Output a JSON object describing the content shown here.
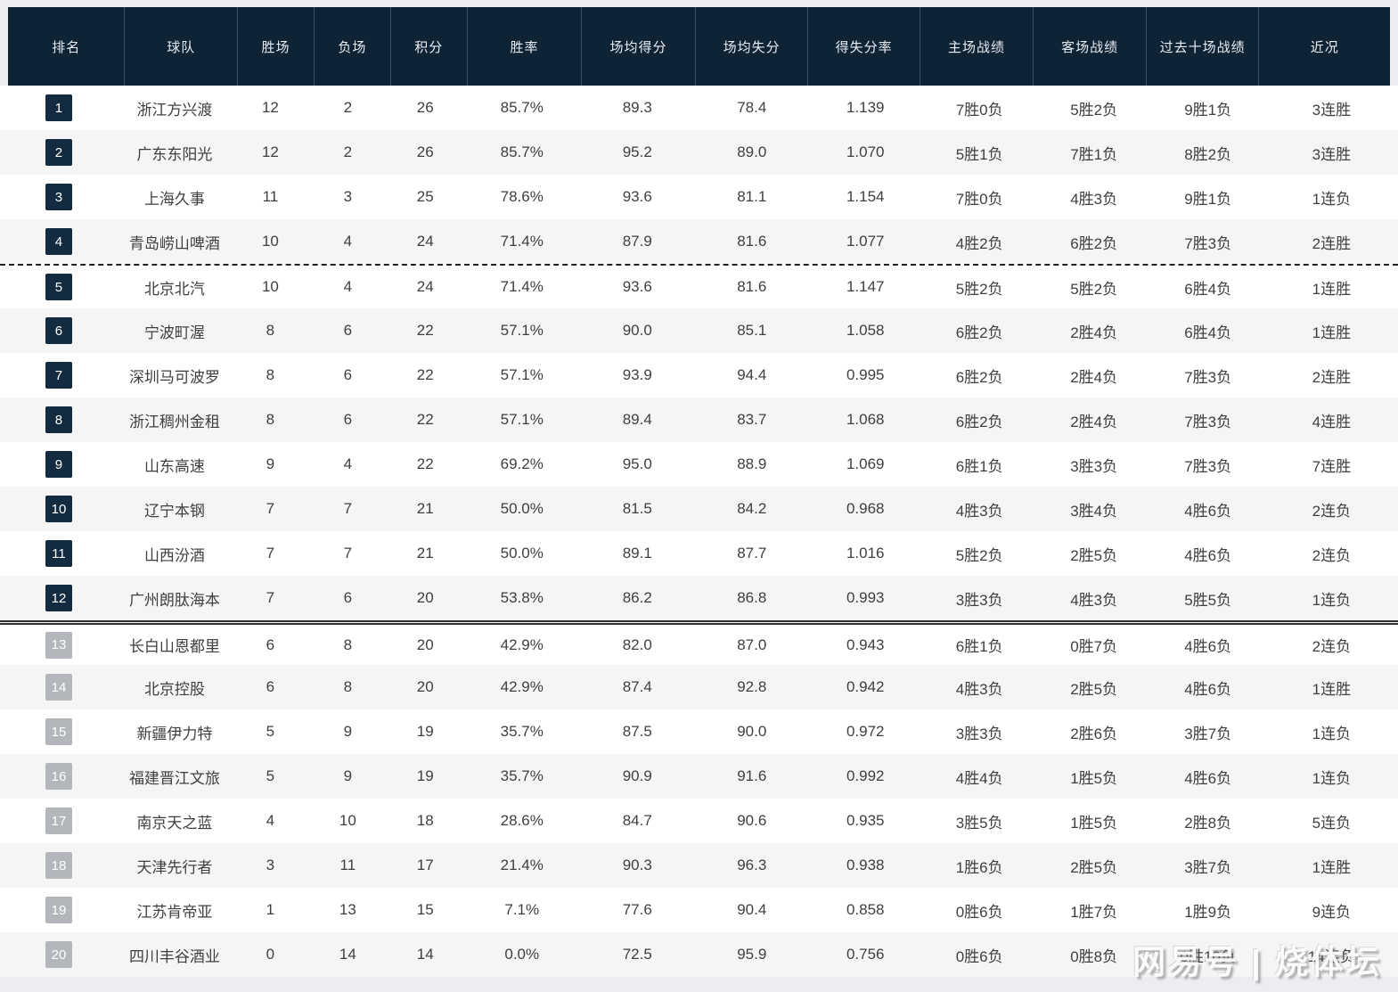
{
  "chart_data": {
    "type": "table",
    "columns": [
      "排名",
      "球队",
      "胜场",
      "负场",
      "积分",
      "胜率",
      "场均得分",
      "场均失分",
      "得失分率",
      "主场战绩",
      "客场战绩",
      "过去十场战绩",
      "近况"
    ],
    "rows": [
      {
        "rank": "1",
        "team": "浙江方兴渡",
        "wins": "12",
        "losses": "2",
        "points": "26",
        "win_rate": "85.7%",
        "avg_for": "89.3",
        "avg_against": "78.4",
        "ratio": "1.139",
        "home": "7胜0负",
        "away": "5胜2负",
        "last10": "9胜1负",
        "streak": "3连胜",
        "rank_badge": "dark",
        "divider_after": "none"
      },
      {
        "rank": "2",
        "team": "广东东阳光",
        "wins": "12",
        "losses": "2",
        "points": "26",
        "win_rate": "85.7%",
        "avg_for": "95.2",
        "avg_against": "89.0",
        "ratio": "1.070",
        "home": "5胜1负",
        "away": "7胜1负",
        "last10": "8胜2负",
        "streak": "3连胜",
        "rank_badge": "dark",
        "divider_after": "none"
      },
      {
        "rank": "3",
        "team": "上海久事",
        "wins": "11",
        "losses": "3",
        "points": "25",
        "win_rate": "78.6%",
        "avg_for": "93.6",
        "avg_against": "81.1",
        "ratio": "1.154",
        "home": "7胜0负",
        "away": "4胜3负",
        "last10": "9胜1负",
        "streak": "1连负",
        "rank_badge": "dark",
        "divider_after": "none"
      },
      {
        "rank": "4",
        "team": "青岛崂山啤酒",
        "wins": "10",
        "losses": "4",
        "points": "24",
        "win_rate": "71.4%",
        "avg_for": "87.9",
        "avg_against": "81.6",
        "ratio": "1.077",
        "home": "4胜2负",
        "away": "6胜2负",
        "last10": "7胜3负",
        "streak": "2连胜",
        "rank_badge": "dark",
        "divider_after": "dashed"
      },
      {
        "rank": "5",
        "team": "北京北汽",
        "wins": "10",
        "losses": "4",
        "points": "24",
        "win_rate": "71.4%",
        "avg_for": "93.6",
        "avg_against": "81.6",
        "ratio": "1.147",
        "home": "5胜2负",
        "away": "5胜2负",
        "last10": "6胜4负",
        "streak": "1连胜",
        "rank_badge": "dark",
        "divider_after": "none"
      },
      {
        "rank": "6",
        "team": "宁波町渥",
        "wins": "8",
        "losses": "6",
        "points": "22",
        "win_rate": "57.1%",
        "avg_for": "90.0",
        "avg_against": "85.1",
        "ratio": "1.058",
        "home": "6胜2负",
        "away": "2胜4负",
        "last10": "6胜4负",
        "streak": "1连胜",
        "rank_badge": "dark",
        "divider_after": "none"
      },
      {
        "rank": "7",
        "team": "深圳马可波罗",
        "wins": "8",
        "losses": "6",
        "points": "22",
        "win_rate": "57.1%",
        "avg_for": "93.9",
        "avg_against": "94.4",
        "ratio": "0.995",
        "home": "6胜2负",
        "away": "2胜4负",
        "last10": "7胜3负",
        "streak": "2连胜",
        "rank_badge": "dark",
        "divider_after": "none"
      },
      {
        "rank": "8",
        "team": "浙江稠州金租",
        "wins": "8",
        "losses": "6",
        "points": "22",
        "win_rate": "57.1%",
        "avg_for": "89.4",
        "avg_against": "83.7",
        "ratio": "1.068",
        "home": "6胜2负",
        "away": "2胜4负",
        "last10": "7胜3负",
        "streak": "4连胜",
        "rank_badge": "dark",
        "divider_after": "none"
      },
      {
        "rank": "9",
        "team": "山东高速",
        "wins": "9",
        "losses": "4",
        "points": "22",
        "win_rate": "69.2%",
        "avg_for": "95.0",
        "avg_against": "88.9",
        "ratio": "1.069",
        "home": "6胜1负",
        "away": "3胜3负",
        "last10": "7胜3负",
        "streak": "7连胜",
        "rank_badge": "dark",
        "divider_after": "none"
      },
      {
        "rank": "10",
        "team": "辽宁本钢",
        "wins": "7",
        "losses": "7",
        "points": "21",
        "win_rate": "50.0%",
        "avg_for": "81.5",
        "avg_against": "84.2",
        "ratio": "0.968",
        "home": "4胜3负",
        "away": "3胜4负",
        "last10": "4胜6负",
        "streak": "2连负",
        "rank_badge": "dark",
        "divider_after": "none"
      },
      {
        "rank": "11",
        "team": "山西汾酒",
        "wins": "7",
        "losses": "7",
        "points": "21",
        "win_rate": "50.0%",
        "avg_for": "89.1",
        "avg_against": "87.7",
        "ratio": "1.016",
        "home": "5胜2负",
        "away": "2胜5负",
        "last10": "4胜6负",
        "streak": "2连负",
        "rank_badge": "dark",
        "divider_after": "none"
      },
      {
        "rank": "12",
        "team": "广州朗肽海本",
        "wins": "7",
        "losses": "6",
        "points": "20",
        "win_rate": "53.8%",
        "avg_for": "86.2",
        "avg_against": "86.8",
        "ratio": "0.993",
        "home": "3胜3负",
        "away": "4胜3负",
        "last10": "5胜5负",
        "streak": "1连负",
        "rank_badge": "dark",
        "divider_after": "solid"
      },
      {
        "rank": "13",
        "team": "长白山恩都里",
        "wins": "6",
        "losses": "8",
        "points": "20",
        "win_rate": "42.9%",
        "avg_for": "82.0",
        "avg_against": "87.0",
        "ratio": "0.943",
        "home": "6胜1负",
        "away": "0胜7负",
        "last10": "4胜6负",
        "streak": "2连负",
        "rank_badge": "gray",
        "divider_after": "none"
      },
      {
        "rank": "14",
        "team": "北京控股",
        "wins": "6",
        "losses": "8",
        "points": "20",
        "win_rate": "42.9%",
        "avg_for": "87.4",
        "avg_against": "92.8",
        "ratio": "0.942",
        "home": "4胜3负",
        "away": "2胜5负",
        "last10": "4胜6负",
        "streak": "1连胜",
        "rank_badge": "gray",
        "divider_after": "none"
      },
      {
        "rank": "15",
        "team": "新疆伊力特",
        "wins": "5",
        "losses": "9",
        "points": "19",
        "win_rate": "35.7%",
        "avg_for": "87.5",
        "avg_against": "90.0",
        "ratio": "0.972",
        "home": "3胜3负",
        "away": "2胜6负",
        "last10": "3胜7负",
        "streak": "1连负",
        "rank_badge": "gray",
        "divider_after": "none"
      },
      {
        "rank": "16",
        "team": "福建晋江文旅",
        "wins": "5",
        "losses": "9",
        "points": "19",
        "win_rate": "35.7%",
        "avg_for": "90.9",
        "avg_against": "91.6",
        "ratio": "0.992",
        "home": "4胜4负",
        "away": "1胜5负",
        "last10": "4胜6负",
        "streak": "1连负",
        "rank_badge": "gray",
        "divider_after": "none"
      },
      {
        "rank": "17",
        "team": "南京天之蓝",
        "wins": "4",
        "losses": "10",
        "points": "18",
        "win_rate": "28.6%",
        "avg_for": "84.7",
        "avg_against": "90.6",
        "ratio": "0.935",
        "home": "3胜5负",
        "away": "1胜5负",
        "last10": "2胜8负",
        "streak": "5连负",
        "rank_badge": "gray",
        "divider_after": "none"
      },
      {
        "rank": "18",
        "team": "天津先行者",
        "wins": "3",
        "losses": "11",
        "points": "17",
        "win_rate": "21.4%",
        "avg_for": "90.3",
        "avg_against": "96.3",
        "ratio": "0.938",
        "home": "1胜6负",
        "away": "2胜5负",
        "last10": "3胜7负",
        "streak": "1连胜",
        "rank_badge": "gray",
        "divider_after": "none"
      },
      {
        "rank": "19",
        "team": "江苏肯帝亚",
        "wins": "1",
        "losses": "13",
        "points": "15",
        "win_rate": "7.1%",
        "avg_for": "77.6",
        "avg_against": "90.4",
        "ratio": "0.858",
        "home": "0胜6负",
        "away": "1胜7负",
        "last10": "1胜9负",
        "streak": "9连负",
        "rank_badge": "gray",
        "divider_after": "none"
      },
      {
        "rank": "20",
        "team": "四川丰谷酒业",
        "wins": "0",
        "losses": "14",
        "points": "14",
        "win_rate": "0.0%",
        "avg_for": "72.5",
        "avg_against": "95.9",
        "ratio": "0.756",
        "home": "0胜6负",
        "away": "0胜8负",
        "last10": "0胜10负",
        "streak": "14连负",
        "rank_badge": "gray",
        "divider_after": "none"
      }
    ]
  },
  "watermark": {
    "text": "网易号 | 烧体坛"
  },
  "colors": {
    "header_bg": "#0e2334",
    "badge_dark": "#132b40",
    "badge_gray": "#b3b6ba",
    "row_alt": "#f5f5f6",
    "page_margin": "#ececf2"
  }
}
